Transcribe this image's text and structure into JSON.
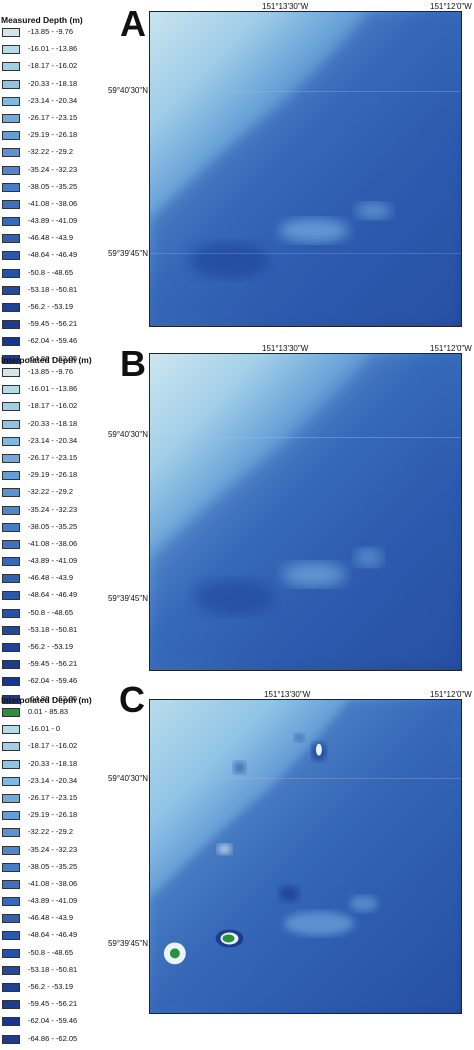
{
  "colors": {
    "ramp": [
      "#cfe6ef",
      "#b7dbea",
      "#a0cfe8",
      "#8ec5e6",
      "#7fb9e2",
      "#71aadc",
      "#659ed7",
      "#5a92d2",
      "#5086cd",
      "#467bc6",
      "#3e71bf",
      "#3769b8",
      "#3060b2",
      "#2b58ab",
      "#2651a4",
      "#23499d",
      "#1f4296",
      "#1c3c8f",
      "#1a368a",
      "#223a86"
    ],
    "high_green": "#2c8f3a",
    "border": "#222222"
  },
  "panels": [
    {
      "letter": "A",
      "legend_title": "Measured Depth (m)",
      "lon_ticks": [
        "151°13'30\"W",
        "151°12'0\"W"
      ],
      "lat_ticks": [
        "59°40'30\"N",
        "59°39'45\"N"
      ],
      "legend": [
        "-13.85 - -9.76",
        "-16.01 - -13.86",
        "-18.17 - -16.02",
        "-20.33 - -18.18",
        "-23.14 - -20.34",
        "-26.17 - -23.15",
        "-29.19 - -26.18",
        "-32.22 - -29.2",
        "-35.24 - -32.23",
        "-38.05 - -35.25",
        "-41.08 - -38.06",
        "-43.89 - -41.09",
        "-46.48 - -43.9",
        "-48.64 - -46.49",
        "-50.8 - -48.65",
        "-53.18 - -50.81",
        "-56.2 - -53.19",
        "-59.45 - -56.21",
        "-62.04 - -59.46",
        "-64.86 - -62.05"
      ]
    },
    {
      "letter": "B",
      "legend_title": "Interpolated Depth (m)",
      "lon_ticks": [
        "151°13'30\"W",
        "151°12'0\"W"
      ],
      "lat_ticks": [
        "59°40'30\"N",
        "59°39'45\"N"
      ],
      "legend": [
        "-13.85 - -9.76",
        "-16.01 - -13.86",
        "-18.17 - -16.02",
        "-20.33 - -18.18",
        "-23.14 - -20.34",
        "-26.17 - -23.15",
        "-29.19 - -26.18",
        "-32.22 - -29.2",
        "-35.24 - -32.23",
        "-38.05 - -35.25",
        "-41.08 - -38.06",
        "-43.89 - -41.09",
        "-46.48 - -43.9",
        "-48.64 - -46.49",
        "-50.8 - -48.65",
        "-53.18 - -50.81",
        "-56.2 - -53.19",
        "-59.45 - -56.21",
        "-62.04 - -59.46",
        "-64.86 - -62.05"
      ]
    },
    {
      "letter": "C",
      "legend_title": "Interpolated Depth (m)",
      "lon_ticks": [
        "151°13'30\"W",
        "151°12'0\"W"
      ],
      "lat_ticks": [
        "59°40'30\"N",
        "59°39'45\"N"
      ],
      "legend": [
        "0.01 - 85.83",
        "-16.01 - 0",
        "-18.17 - -16.02",
        "-20.33 - -18.18",
        "-23.14 - -20.34",
        "-26.17 - -23.15",
        "-29.19 - -26.18",
        "-32.22 - -29.2",
        "-35.24 - -32.23",
        "-38.05 - -35.25",
        "-41.08 - -38.06",
        "-43.89 - -41.09",
        "-46.48 - -43.9",
        "-48.64 - -46.49",
        "-50.8 - -48.65",
        "-53.18 - -50.81",
        "-56.2 - -53.19",
        "-59.45 - -56.21",
        "-62.04 - -59.46",
        "-64.86 - -62.05"
      ]
    }
  ]
}
